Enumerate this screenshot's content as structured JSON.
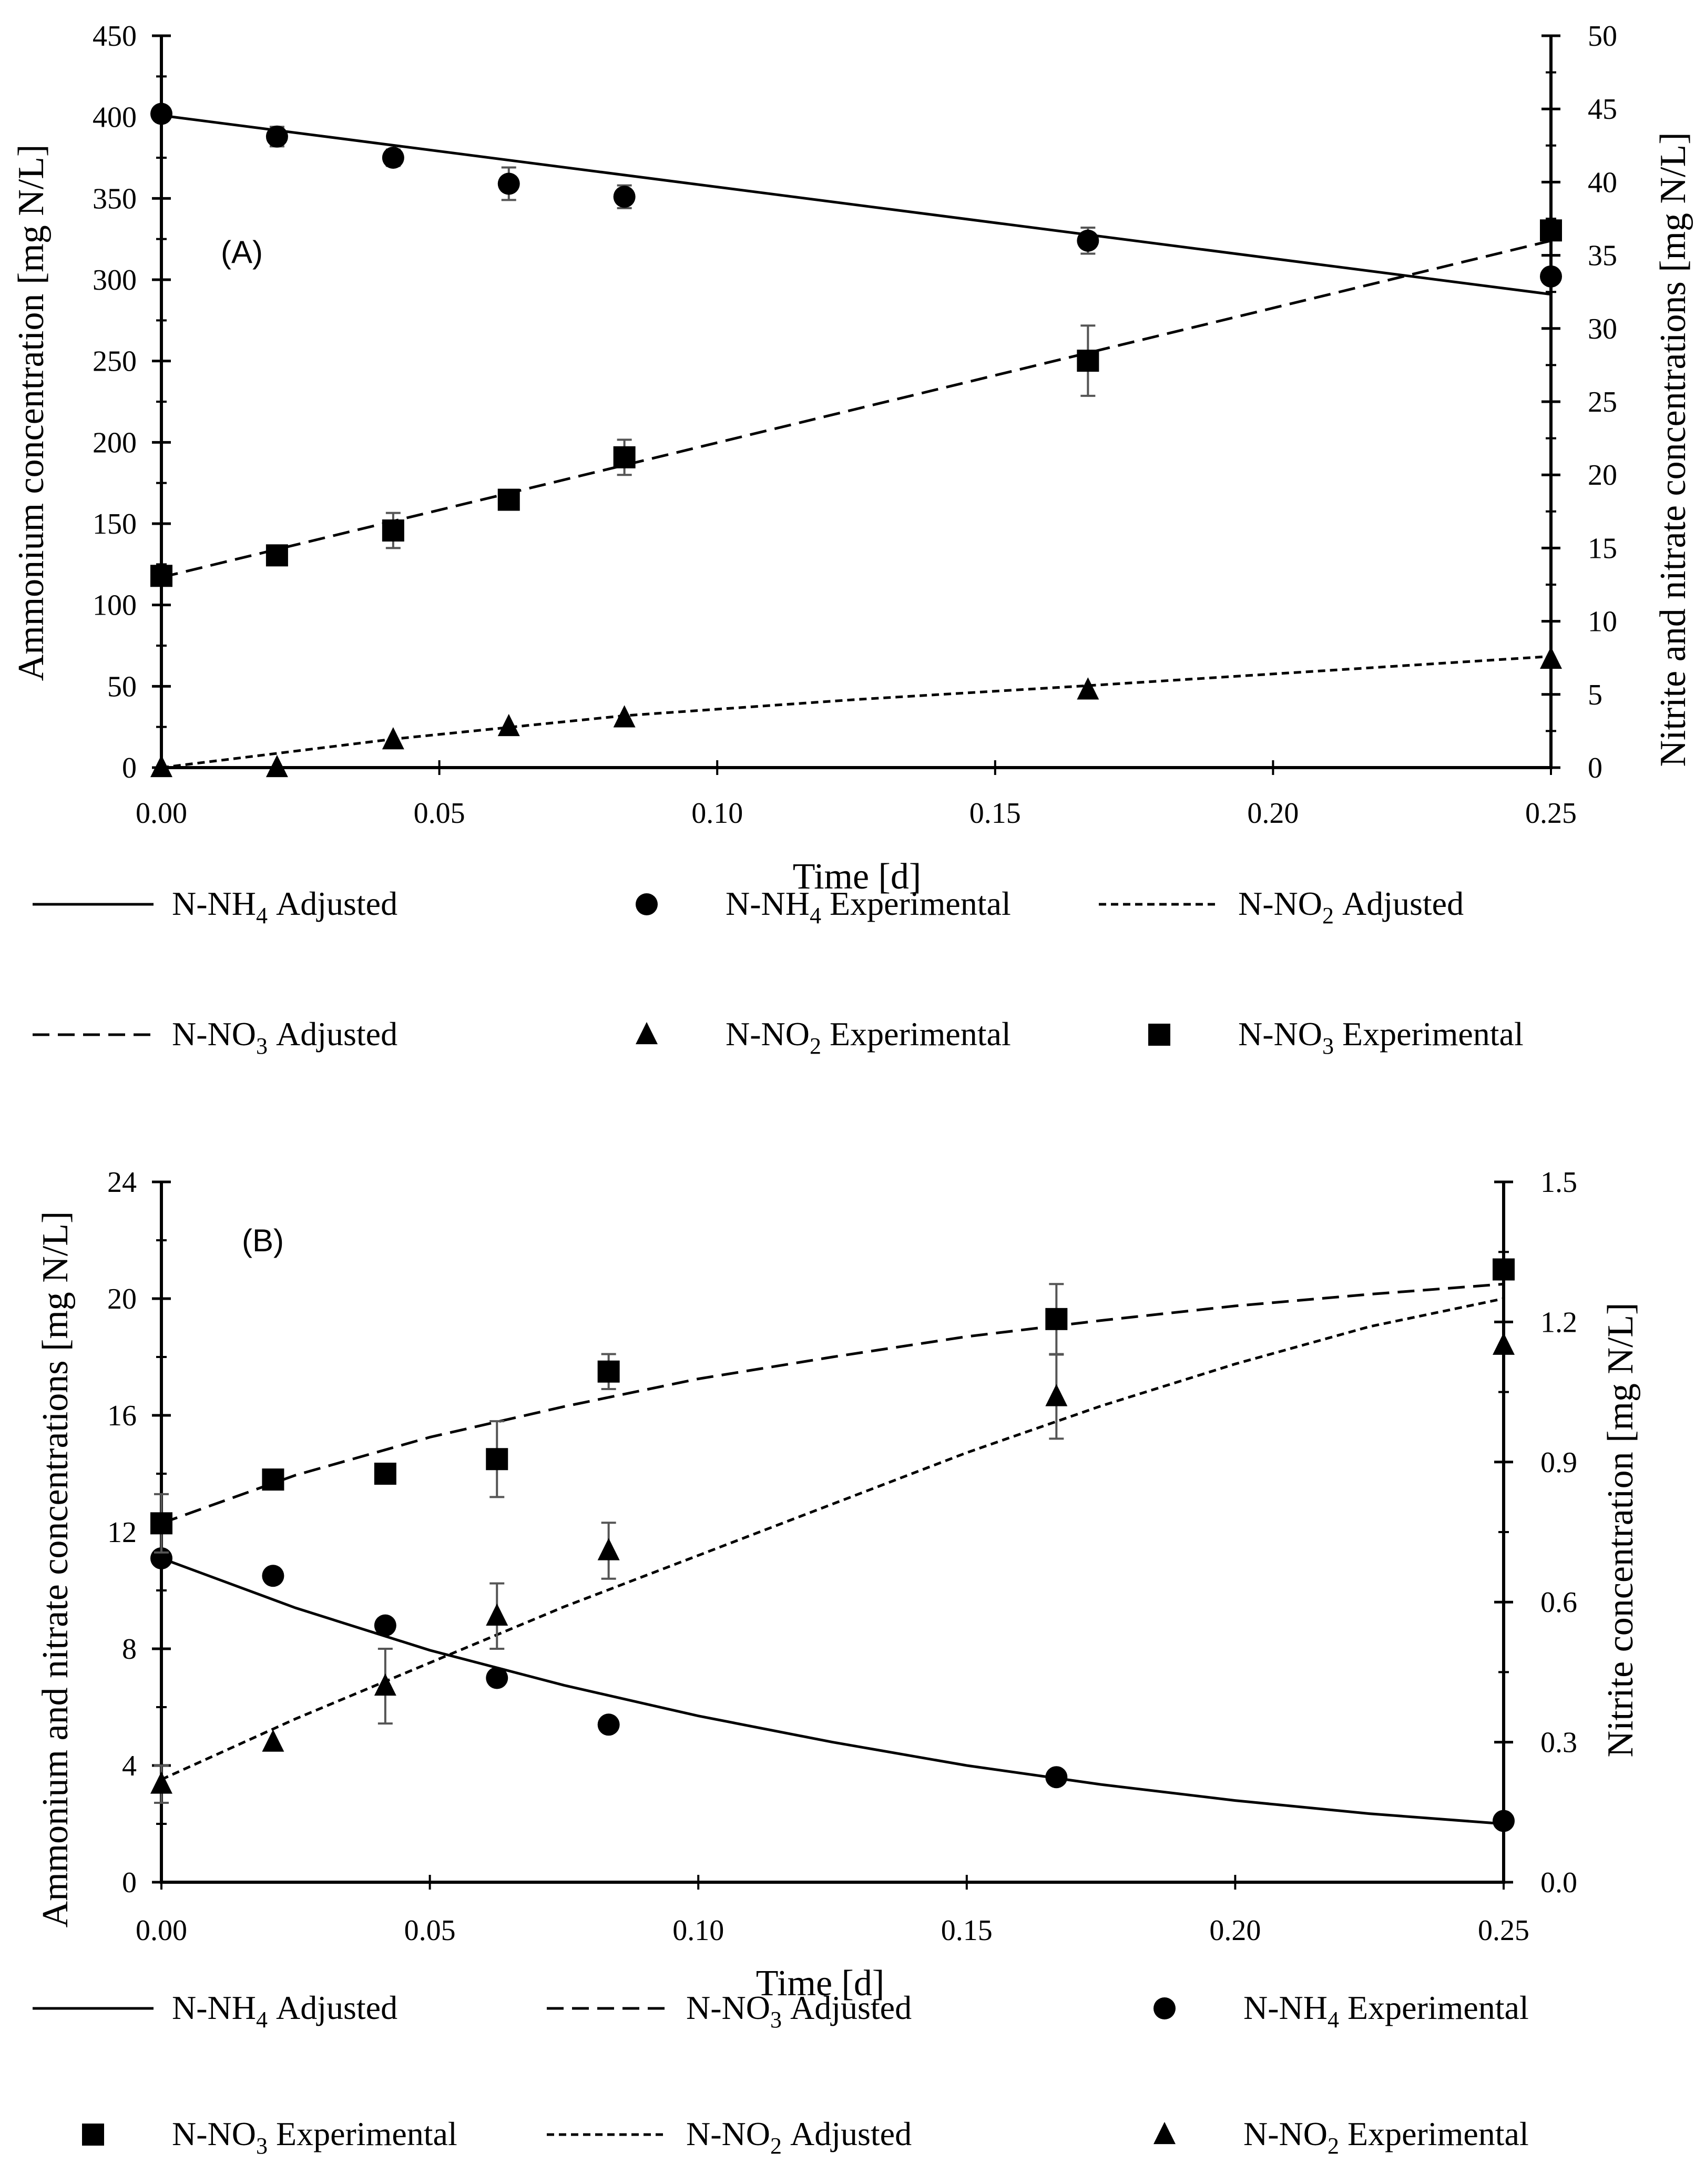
{
  "chart_data": [
    {
      "type": "line",
      "panel_label": "(A)",
      "xlabel": "Time [d]",
      "ylabel_left": "Ammonium concentration [mg N/L]",
      "ylabel_right": "Nitrite and nitrate concentrations [mg N/L]",
      "xlim": [
        0,
        0.25
      ],
      "xticks": [
        "0.00",
        "0.05",
        "0.10",
        "0.15",
        "0.20",
        "0.25"
      ],
      "ylim_left": [
        0,
        450
      ],
      "yticks_left": [
        "0",
        "50",
        "100",
        "150",
        "200",
        "250",
        "300",
        "350",
        "400",
        "450"
      ],
      "ylim_right": [
        0,
        50
      ],
      "yticks_right": [
        "0",
        "5",
        "10",
        "15",
        "20",
        "25",
        "30",
        "35",
        "40",
        "45",
        "50"
      ],
      "grid": false,
      "legend_position": "bottom",
      "series": [
        {
          "key": "nh4_adj",
          "kind": "line",
          "axis": "left",
          "dash": "solid",
          "x": [
            0,
            0.25
          ],
          "y": [
            401,
            291
          ]
        },
        {
          "key": "nh4_exp",
          "kind": "points",
          "axis": "left",
          "marker": "circle",
          "x": [
            0,
            0.0208,
            0.0417,
            0.0625,
            0.0833,
            0.1667,
            0.25
          ],
          "y": [
            402,
            388,
            375,
            359,
            351,
            324,
            302
          ],
          "err": [
            0,
            6,
            5,
            10,
            7,
            8,
            0
          ]
        },
        {
          "key": "no2_adj",
          "kind": "line",
          "axis": "right",
          "dash": "short",
          "x": [
            0,
            0.0417,
            0.0833,
            0.125,
            0.1667,
            0.2083,
            0.25
          ],
          "y": [
            0,
            1.95,
            3.55,
            4.65,
            5.6,
            6.6,
            7.6
          ]
        },
        {
          "key": "no3_adj",
          "kind": "line",
          "axis": "right",
          "dash": "long",
          "x": [
            0,
            0.25
          ],
          "y": [
            13.0,
            36.0
          ]
        },
        {
          "key": "no2_exp",
          "kind": "points",
          "axis": "right",
          "marker": "triangle",
          "x": [
            0,
            0.0208,
            0.0417,
            0.0625,
            0.0833,
            0.1667,
            0.25
          ],
          "y": [
            0,
            0,
            1.9,
            2.8,
            3.4,
            5.3,
            7.4
          ],
          "err": [
            0,
            0,
            0,
            0,
            0,
            0,
            0
          ]
        },
        {
          "key": "no3_exp",
          "kind": "points",
          "axis": "right",
          "marker": "square",
          "x": [
            0,
            0.0208,
            0.0417,
            0.0625,
            0.0833,
            0.1667,
            0.25
          ],
          "y": [
            13.1,
            14.5,
            16.2,
            18.3,
            21.2,
            27.8,
            36.7
          ],
          "err": [
            0,
            0.5,
            1.2,
            0.5,
            1.2,
            2.4,
            0.6
          ]
        }
      ],
      "legend": [
        {
          "series": "nh4_adj",
          "label": "N-NH",
          "sub": "4",
          "suffix": " Adjusted"
        },
        {
          "series": "nh4_exp",
          "label": "N-NH",
          "sub": "4",
          "suffix": " Experimental"
        },
        {
          "series": "no2_adj",
          "label": "N-NO",
          "sub": "2",
          "suffix": " Adjusted"
        },
        {
          "series": "no3_adj",
          "label": "N-NO",
          "sub": "3",
          "suffix": " Adjusted"
        },
        {
          "series": "no2_exp",
          "label": "N-NO",
          "sub": "2",
          "suffix": " Experimental"
        },
        {
          "series": "no3_exp",
          "label": "N-NO",
          "sub": "3",
          "suffix": " Experimental"
        }
      ]
    },
    {
      "type": "line",
      "panel_label": "(B)",
      "xlabel": "Time [d]",
      "ylabel_left": "Ammonium and nitrate concentrations [mg N/L]",
      "ylabel_right": "Nitrite concentration [mg N/L]",
      "xlim": [
        0,
        0.25
      ],
      "xticks": [
        "0.00",
        "0.05",
        "0.10",
        "0.15",
        "0.20",
        "0.25"
      ],
      "ylim_left": [
        0,
        24
      ],
      "yticks_left": [
        "0",
        "4",
        "8",
        "12",
        "16",
        "20",
        "24"
      ],
      "ylim_right": [
        0,
        1.5
      ],
      "yticks_right": [
        "0.0",
        "0.3",
        "0.6",
        "0.9",
        "1.2",
        "1.5"
      ],
      "grid": false,
      "legend_position": "bottom",
      "series": [
        {
          "key": "nh4_adj",
          "kind": "line",
          "axis": "left",
          "dash": "solid",
          "x": [
            0,
            0.025,
            0.05,
            0.075,
            0.1,
            0.125,
            0.15,
            0.175,
            0.2,
            0.225,
            0.25
          ],
          "y": [
            11.1,
            9.4,
            7.95,
            6.75,
            5.7,
            4.8,
            4.0,
            3.35,
            2.8,
            2.35,
            2.0
          ]
        },
        {
          "key": "no3_adj",
          "kind": "line",
          "axis": "left",
          "dash": "long",
          "x": [
            0,
            0.025,
            0.05,
            0.075,
            0.1,
            0.125,
            0.15,
            0.175,
            0.2,
            0.225,
            0.25
          ],
          "y": [
            12.3,
            13.95,
            15.25,
            16.3,
            17.25,
            18.0,
            18.7,
            19.25,
            19.75,
            20.15,
            20.5
          ]
        },
        {
          "key": "no2_adj",
          "kind": "line",
          "axis": "right",
          "dash": "short",
          "x": [
            0,
            0.025,
            0.05,
            0.075,
            0.1,
            0.125,
            0.15,
            0.175,
            0.2,
            0.225,
            0.25
          ],
          "y": [
            0.22,
            0.35,
            0.47,
            0.59,
            0.7,
            0.81,
            0.92,
            1.02,
            1.11,
            1.19,
            1.25
          ]
        },
        {
          "key": "nh4_exp",
          "kind": "points",
          "axis": "left",
          "marker": "circle",
          "x": [
            0,
            0.0208,
            0.0417,
            0.0625,
            0.0833,
            0.1667,
            0.25
          ],
          "y": [
            11.1,
            10.5,
            8.8,
            7.0,
            5.4,
            3.6,
            2.1
          ],
          "err": [
            0,
            0,
            0,
            0,
            0,
            0.2,
            0
          ]
        },
        {
          "key": "no3_exp",
          "kind": "points",
          "axis": "left",
          "marker": "square",
          "x": [
            0,
            0.0208,
            0.0417,
            0.0625,
            0.0833,
            0.1667,
            0.25
          ],
          "y": [
            12.3,
            13.8,
            14.0,
            14.5,
            17.5,
            19.3,
            21.0
          ],
          "err": [
            1.0,
            0,
            0,
            1.3,
            0.6,
            1.2,
            0
          ]
        },
        {
          "key": "no2_exp",
          "kind": "points",
          "axis": "right",
          "marker": "triangle",
          "x": [
            0,
            0.0208,
            0.0417,
            0.0625,
            0.0833,
            0.1667,
            0.25
          ],
          "y": [
            0.21,
            0.3,
            0.42,
            0.57,
            0.71,
            1.04,
            1.15
          ],
          "err": [
            0.04,
            0,
            0.08,
            0.07,
            0.06,
            0.09,
            0
          ]
        }
      ],
      "legend": [
        {
          "series": "nh4_adj",
          "label": "N-NH",
          "sub": "4",
          "suffix": " Adjusted"
        },
        {
          "series": "no3_adj",
          "label": "N-NO",
          "sub": "3",
          "suffix": " Adjusted"
        },
        {
          "series": "nh4_exp",
          "label": "N-NH",
          "sub": "4",
          "suffix": " Experimental"
        },
        {
          "series": "no3_exp",
          "label": "N-NO",
          "sub": "3",
          "suffix": " Experimental"
        },
        {
          "series": "no2_adj",
          "label": "N-NO",
          "sub": "2",
          "suffix": " Adjusted"
        },
        {
          "series": "no2_exp",
          "label": "N-NO",
          "sub": "2",
          "suffix": " Experimental"
        }
      ]
    }
  ]
}
